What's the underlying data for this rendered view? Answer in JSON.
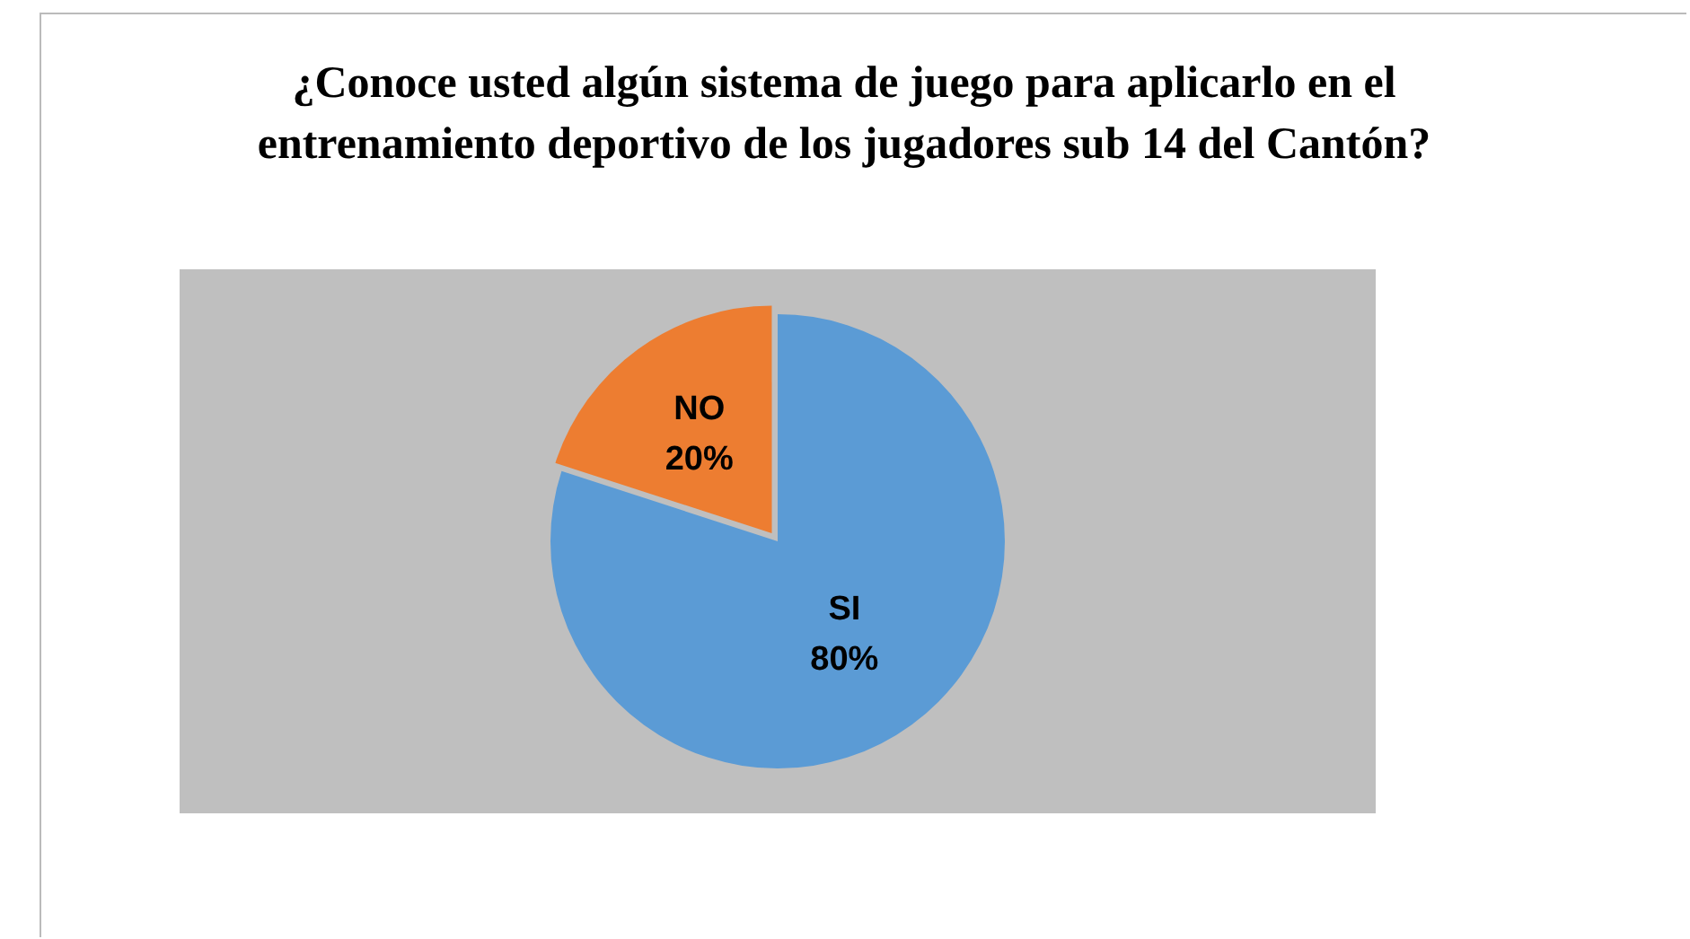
{
  "chart_data": {
    "type": "pie",
    "title": "¿Conoce usted algún sistema de juego para aplicarlo en el entrenamiento deportivo de los jugadores sub 14 del Cantón?",
    "categories": [
      "SI",
      "NO"
    ],
    "values": [
      80,
      20
    ],
    "colors": [
      "#5b9bd5",
      "#ed7d31"
    ],
    "value_labels": [
      "80%",
      "20%"
    ],
    "legend": false
  }
}
